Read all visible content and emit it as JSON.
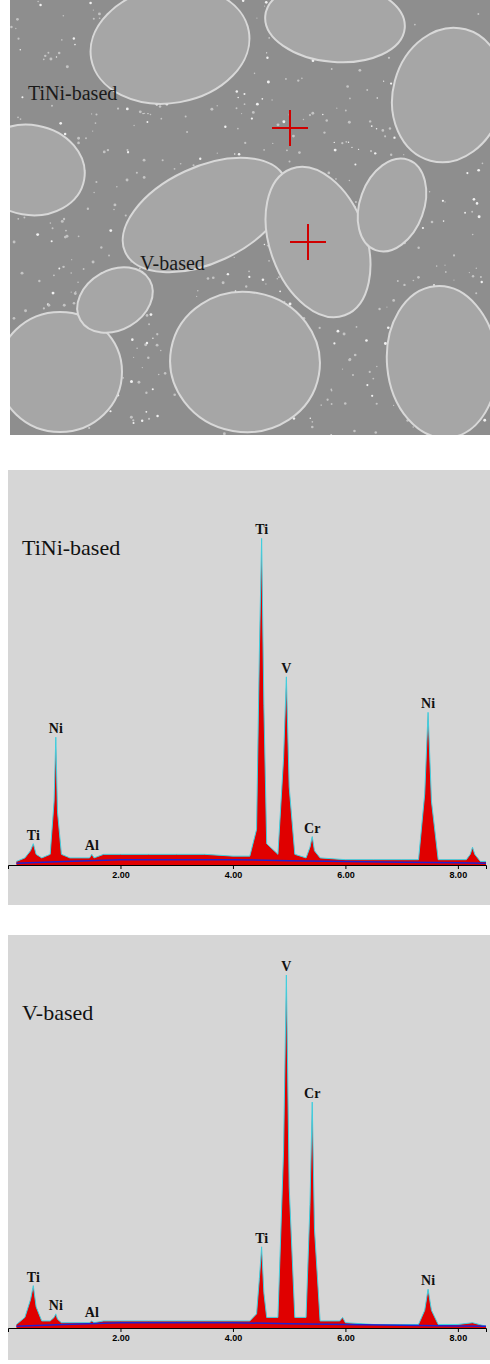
{
  "micrograph": {
    "labels": [
      "TiNi-based",
      "V-based"
    ]
  },
  "chart_data": [
    {
      "type": "area",
      "title": "TiNi-based",
      "xlim": [
        0,
        8.5
      ],
      "ylim": [
        0,
        100
      ],
      "xticks": [
        {
          "value": 2,
          "label": "2.00"
        },
        {
          "value": 4,
          "label": "4.00"
        },
        {
          "value": 6,
          "label": "6.00"
        },
        {
          "value": 8,
          "label": "8.00"
        }
      ],
      "grid": false,
      "tick_labels": "x",
      "series": [
        {
          "type": "area",
          "color": "#e00000",
          "x": [
            0.15,
            0.3,
            0.4,
            0.45,
            0.5,
            0.6,
            0.75,
            0.82,
            0.85,
            0.88,
            0.95,
            1.1,
            1.3,
            1.45,
            1.49,
            1.53,
            1.7,
            2.0,
            2.5,
            3.0,
            3.5,
            4.0,
            4.3,
            4.42,
            4.47,
            4.51,
            4.55,
            4.6,
            4.8,
            4.9,
            4.95,
            5.0,
            5.1,
            5.3,
            5.37,
            5.41,
            5.45,
            5.55,
            6.0,
            6.5,
            7.0,
            7.3,
            7.41,
            7.47,
            7.53,
            7.65,
            8.0,
            8.15,
            8.22,
            8.26,
            8.3,
            8.4,
            8.5
          ],
          "values": [
            1,
            2,
            4,
            6,
            3,
            2,
            3,
            18,
            36,
            15,
            3,
            2,
            2,
            2,
            3,
            2,
            3,
            3,
            3,
            3,
            3,
            2.5,
            2.5,
            10,
            60,
            92,
            45,
            6,
            3,
            30,
            53,
            22,
            3,
            2,
            5,
            8,
            4,
            2,
            1.5,
            1.5,
            1.5,
            1.5,
            20,
            43,
            18,
            1.5,
            1.5,
            1.5,
            3,
            5,
            3,
            1,
            1
          ]
        },
        {
          "type": "line",
          "color": "#2020d0",
          "x": [
            0.15,
            1.0,
            2.0,
            3.0,
            4.0,
            5.0,
            6.0,
            7.0,
            8.0,
            8.5
          ],
          "values": [
            0.5,
            1,
            1.5,
            1.5,
            1.5,
            1.2,
            1,
            0.8,
            0.6,
            0.5
          ]
        }
      ],
      "peaks": [
        {
          "label": "Ti",
          "energy": 0.45
        },
        {
          "label": "Ni",
          "energy": 0.85
        },
        {
          "label": "Al",
          "energy": 1.49
        },
        {
          "label": "Ti",
          "energy": 4.51
        },
        {
          "label": "V",
          "energy": 4.95
        },
        {
          "label": "Cr",
          "energy": 5.41
        },
        {
          "label": "Ni",
          "energy": 7.47
        }
      ]
    },
    {
      "type": "area",
      "title": "V-based",
      "xlim": [
        0,
        8.5
      ],
      "ylim": [
        0,
        100
      ],
      "xticks": [
        {
          "value": 2,
          "label": "2.00"
        },
        {
          "value": 4,
          "label": "4.00"
        },
        {
          "value": 6,
          "label": "6.00"
        },
        {
          "value": 8,
          "label": "8.00"
        }
      ],
      "grid": false,
      "tick_labels": "x",
      "series": [
        {
          "type": "area",
          "color": "#e00000",
          "x": [
            0.15,
            0.3,
            0.4,
            0.45,
            0.5,
            0.6,
            0.75,
            0.82,
            0.85,
            0.88,
            0.95,
            1.1,
            1.3,
            1.45,
            1.49,
            1.53,
            1.7,
            2.0,
            2.5,
            3.0,
            3.5,
            4.0,
            4.3,
            4.42,
            4.47,
            4.51,
            4.55,
            4.6,
            4.8,
            4.9,
            4.95,
            5.0,
            5.1,
            5.3,
            5.37,
            5.41,
            5.45,
            5.55,
            5.9,
            5.95,
            6.0,
            6.5,
            7.0,
            7.3,
            7.41,
            7.47,
            7.53,
            7.65,
            8.0,
            8.26,
            8.5
          ],
          "values": [
            1,
            3,
            8,
            12,
            6,
            2,
            2,
            3,
            4,
            2.5,
            1.5,
            1.5,
            1.5,
            1.5,
            2,
            1.5,
            2,
            2,
            2,
            2,
            2,
            2,
            2,
            4,
            14,
            23,
            10,
            3,
            3,
            50,
            100,
            40,
            3,
            3,
            35,
            64,
            28,
            2,
            2,
            3,
            1.5,
            1,
            1,
            1,
            5,
            11,
            5,
            1,
            1,
            1.5,
            0.5
          ]
        },
        {
          "type": "line",
          "color": "#2020d0",
          "x": [
            0.15,
            1.0,
            2.0,
            3.0,
            4.0,
            5.0,
            6.0,
            7.0,
            8.0,
            8.5
          ],
          "values": [
            0.5,
            1,
            1.5,
            1.5,
            1.5,
            1.2,
            1,
            0.8,
            0.6,
            0.5
          ]
        }
      ],
      "peaks": [
        {
          "label": "Ti",
          "energy": 0.45
        },
        {
          "label": "Ni",
          "energy": 0.85
        },
        {
          "label": "Al",
          "energy": 1.49
        },
        {
          "label": "Ti",
          "energy": 4.51
        },
        {
          "label": "V",
          "energy": 4.95
        },
        {
          "label": "Cr",
          "energy": 5.41
        },
        {
          "label": "Ni",
          "energy": 7.47
        }
      ]
    }
  ]
}
